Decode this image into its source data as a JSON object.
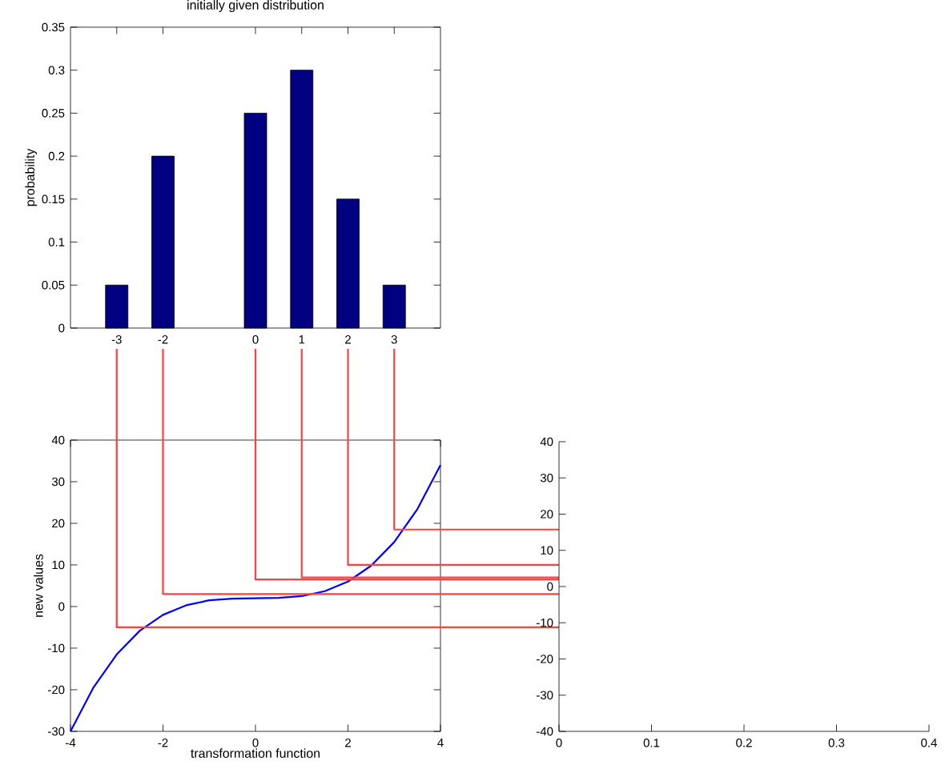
{
  "chart_data": [
    {
      "type": "bar",
      "title": "initially given distribution",
      "ylabel": "probability",
      "x": [
        -3,
        -2,
        0,
        1,
        2,
        3
      ],
      "values": [
        0.05,
        0.2,
        0.25,
        0.3,
        0.15,
        0.05
      ],
      "color": "#000080",
      "xlim": [
        -4,
        4
      ],
      "xticks": [
        -3,
        -2,
        0,
        1,
        2,
        3
      ],
      "ylim": [
        0,
        0.35
      ],
      "yticks": [
        0,
        0.05,
        0.1,
        0.15,
        0.2,
        0.25,
        0.3,
        0.35
      ]
    },
    {
      "type": "line",
      "xlabel": "transformation function",
      "ylabel": "new values",
      "xlim": [
        -4,
        4
      ],
      "xticks": [
        -4,
        -2,
        0,
        2,
        4
      ],
      "ylim": [
        -30,
        40
      ],
      "yticks": [
        -30,
        -20,
        -10,
        0,
        10,
        20,
        30,
        40
      ],
      "series": [
        {
          "color": "#0000ff",
          "x": [
            -4,
            -3.5,
            -3,
            -2.5,
            -2,
            -1.5,
            -1,
            -0.5,
            0,
            0.5,
            1,
            1.5,
            2,
            2.5,
            3,
            3.5,
            4
          ],
          "values": [
            -30,
            -19.4,
            -11.5,
            -5.8,
            -2,
            0.3,
            1.5,
            1.9,
            2,
            2.1,
            2.5,
            3.7,
            6,
            9.8,
            15.5,
            23.4,
            34
          ]
        },
        {
          "color": "#ff4040",
          "x": [
            -3,
            -3,
            4
          ],
          "values": [
            40,
            -5,
            -5
          ]
        },
        {
          "color": "#ff4040",
          "x": [
            -2,
            -2,
            4
          ],
          "values": [
            40,
            3,
            3
          ]
        },
        {
          "color": "#ff4040",
          "x": [
            0,
            0,
            4
          ],
          "values": [
            40,
            6.5,
            6.5
          ]
        },
        {
          "color": "#ff4040",
          "x": [
            1,
            1,
            4
          ],
          "values": [
            40,
            7,
            7
          ]
        },
        {
          "color": "#ff4040",
          "x": [
            2,
            2,
            4
          ],
          "values": [
            40,
            10,
            10
          ]
        },
        {
          "color": "#ff4040",
          "x": [
            3,
            3,
            4
          ],
          "values": [
            40,
            18.5,
            18.5
          ]
        }
      ]
    },
    {
      "type": "line",
      "xlim": [
        0,
        0.4
      ],
      "xticks": [
        0,
        0.1,
        0.2,
        0.3,
        0.4
      ],
      "ylim": [
        -40,
        40
      ],
      "yticks": [
        -40,
        -30,
        -20,
        -10,
        0,
        10,
        20,
        30,
        40
      ]
    }
  ]
}
